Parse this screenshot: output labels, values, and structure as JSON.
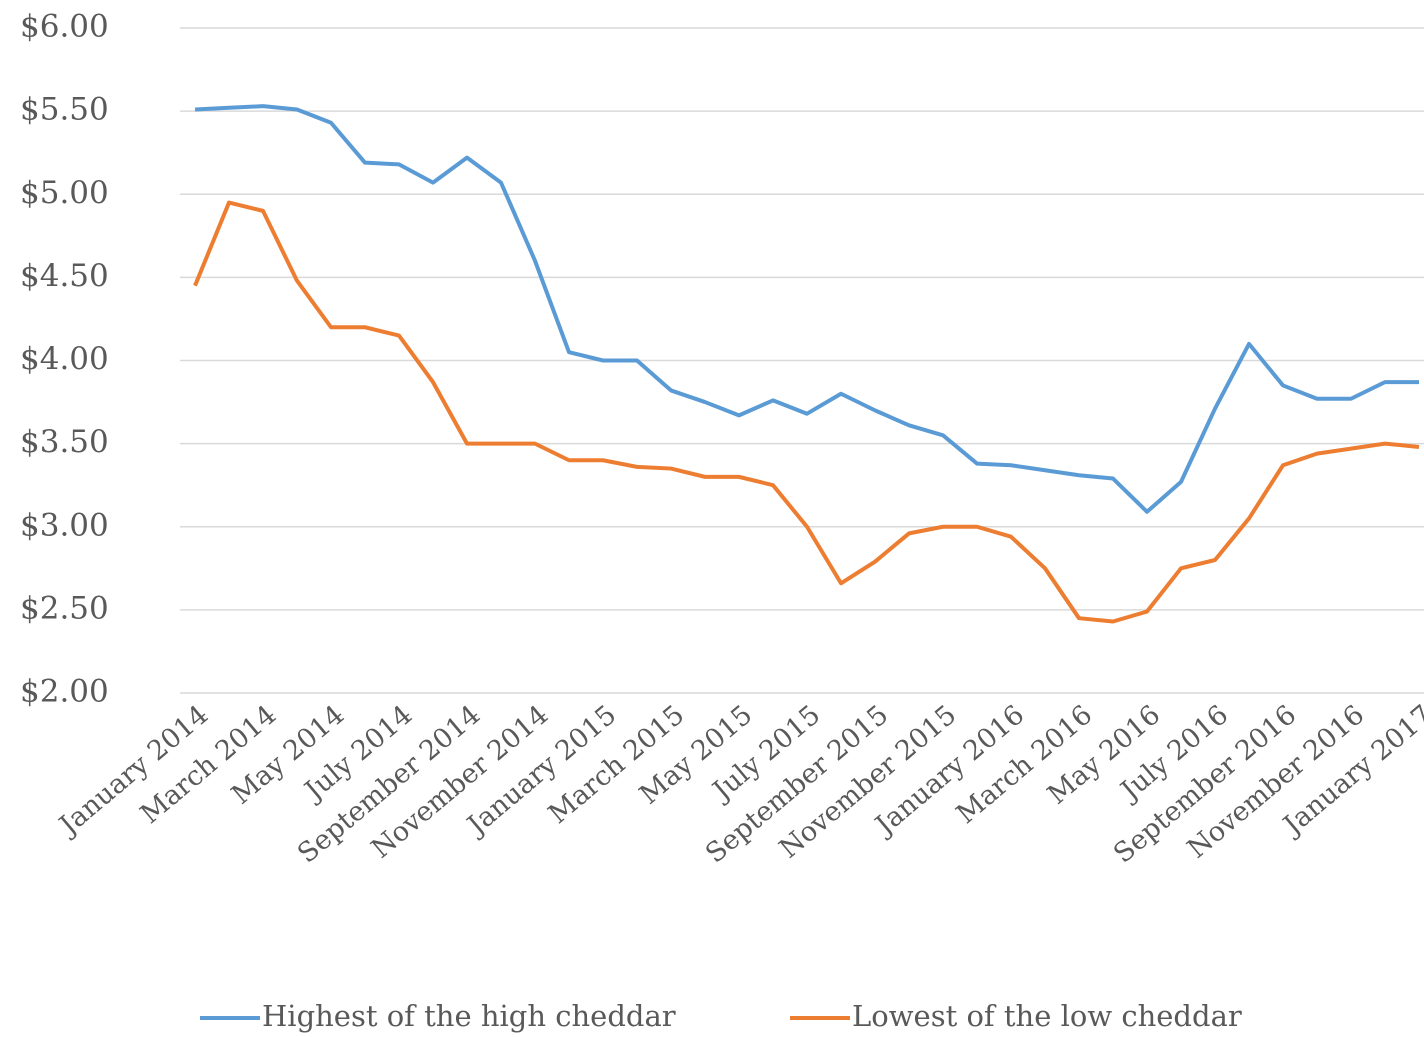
{
  "chart_data": {
    "type": "line",
    "categories": [
      "January 2014",
      null,
      "March 2014",
      null,
      "May 2014",
      null,
      "July 2014",
      null,
      "September 2014",
      null,
      "November 2014",
      null,
      "January 2015",
      null,
      "March 2015",
      null,
      "May 2015",
      null,
      "July 2015",
      null,
      "September 2015",
      null,
      "November 2015",
      null,
      "January 2016",
      null,
      "March 2016",
      null,
      "May 2016",
      null,
      "July 2016",
      null,
      "September 2016",
      null,
      "November 2016",
      null,
      "January 2017"
    ],
    "series": [
      {
        "name": "Highest of the high cheddar",
        "color": "#5b9bd5",
        "values": [
          5.51,
          5.52,
          5.53,
          5.51,
          5.43,
          5.19,
          5.18,
          5.07,
          5.22,
          5.07,
          4.6,
          4.05,
          4.0,
          4.0,
          3.82,
          3.75,
          3.67,
          3.76,
          3.68,
          3.8,
          3.7,
          3.61,
          3.55,
          3.38,
          3.37,
          3.34,
          3.31,
          3.29,
          3.09,
          3.27,
          3.71,
          4.1,
          3.85,
          3.77,
          3.77,
          3.87,
          3.87
        ]
      },
      {
        "name": "Lowest of the low cheddar",
        "color": "#ed7d31",
        "values": [
          4.45,
          4.95,
          4.9,
          4.48,
          4.2,
          4.2,
          4.15,
          3.87,
          3.5,
          3.5,
          3.5,
          3.4,
          3.4,
          3.36,
          3.35,
          3.3,
          3.3,
          3.25,
          3.0,
          2.66,
          2.79,
          2.96,
          3.0,
          3.0,
          2.94,
          2.75,
          2.45,
          2.43,
          2.49,
          2.75,
          2.8,
          3.05,
          3.37,
          3.44,
          3.47,
          3.5,
          3.48
        ]
      }
    ],
    "ylim": [
      2,
      6
    ],
    "yticks": [
      {
        "value": 2,
        "label": "$2.00"
      },
      {
        "value": 2.5,
        "label": "$2.50"
      },
      {
        "value": 3,
        "label": "$3.00"
      },
      {
        "value": 3.5,
        "label": "$3.50"
      },
      {
        "value": 4,
        "label": "$4.00"
      },
      {
        "value": 4.5,
        "label": "$4.50"
      },
      {
        "value": 5,
        "label": "$5.00"
      },
      {
        "value": 5.5,
        "label": "$5.50"
      },
      {
        "value": 6,
        "label": "$6.00"
      }
    ],
    "grid": true,
    "legend": "bottom"
  }
}
